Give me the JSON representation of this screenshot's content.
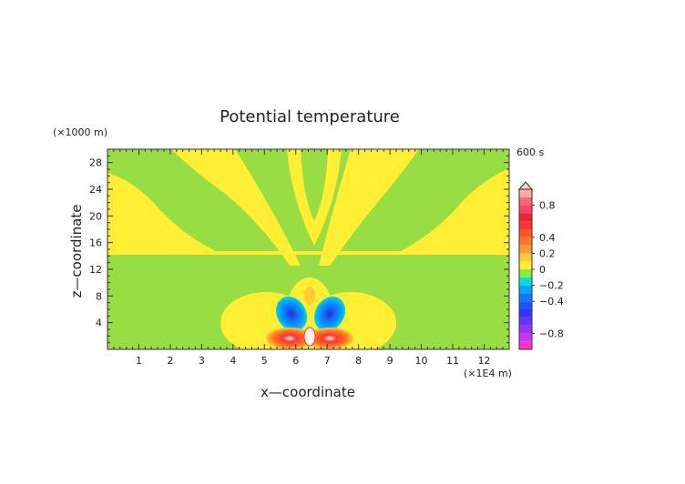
{
  "chart_data": {
    "type": "heatmap",
    "title": "Potential temperature",
    "xlabel": "x—coordinate",
    "ylabel": "z—coordinate",
    "x_unit": "(×1E4 m)",
    "y_unit": "(×1000 m)",
    "time_label": "600 s",
    "xlim": [
      0,
      12.8
    ],
    "ylim": [
      0,
      30
    ],
    "x_ticks": [
      "1",
      "2",
      "3",
      "4",
      "5",
      "6",
      "7",
      "8",
      "9",
      "10",
      "11",
      "12"
    ],
    "y_ticks": [
      "4",
      "8",
      "12",
      "16",
      "20",
      "24",
      "28"
    ],
    "colorbar": {
      "levels": [
        -1.0,
        -0.9,
        -0.8,
        -0.7,
        -0.6,
        -0.5,
        -0.4,
        -0.3,
        -0.2,
        -0.1,
        0,
        0.1,
        0.2,
        0.3,
        0.4,
        0.5,
        0.6,
        0.7,
        0.8,
        0.9,
        1.0
      ],
      "colors": [
        "#ff33cc",
        "#cc33ff",
        "#9933ff",
        "#6633ff",
        "#3333ff",
        "#2255ff",
        "#1177ff",
        "#00aaff",
        "#00dddd",
        "#88ee33",
        "#ffee33",
        "#ffcc33",
        "#ff9933",
        "#ff7722",
        "#ff5522",
        "#ff3333",
        "#ee2233",
        "#ff4466",
        "#ff6677",
        "#ffaaaa"
      ],
      "tick_labels": [
        "0.8",
        "0.4",
        "0.2",
        "0",
        "−0.2",
        "−0.4",
        "−0.8"
      ],
      "tick_values": [
        0.8,
        0.4,
        0.2,
        0,
        -0.2,
        -0.4,
        -0.8
      ],
      "extend": "max"
    },
    "background_value": 0,
    "features": [
      {
        "description": "positive anomaly band",
        "value": 0.05
      },
      {
        "description": "strong anomaly near x=6.3, z=1",
        "min": -0.9,
        "max": 0.9
      }
    ]
  }
}
